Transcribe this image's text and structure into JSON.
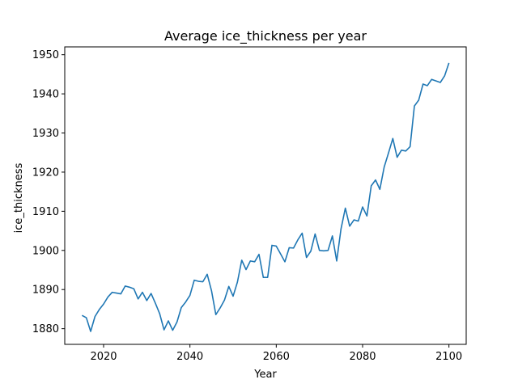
{
  "chart_data": {
    "type": "line",
    "title": "Average ice_thickness per year",
    "xlabel": "Year",
    "ylabel": "ice_thickness",
    "xlim": [
      2011,
      2104
    ],
    "ylim": [
      1876,
      1952
    ],
    "xticks": [
      2020,
      2040,
      2060,
      2080,
      2100
    ],
    "yticks": [
      1880,
      1890,
      1900,
      1910,
      1920,
      1930,
      1940,
      1950
    ],
    "grid": false,
    "line_color": "#1f77b4",
    "series": [
      {
        "x": [
          2015,
          2016,
          2017,
          2018,
          2019,
          2020,
          2021,
          2022,
          2023,
          2024,
          2025,
          2026,
          2027,
          2028,
          2029,
          2030,
          2031,
          2032,
          2033,
          2034,
          2035,
          2036,
          2037,
          2038,
          2039,
          2040,
          2041,
          2042,
          2043,
          2044,
          2045,
          2046,
          2047,
          2048,
          2049,
          2050,
          2051,
          2052,
          2053,
          2054,
          2055,
          2056,
          2057,
          2058,
          2059,
          2060,
          2061,
          2062,
          2063,
          2064,
          2065,
          2066,
          2067,
          2068,
          2069,
          2070,
          2071,
          2072,
          2073,
          2074,
          2075,
          2076,
          2077,
          2078,
          2079,
          2080,
          2081,
          2082,
          2083,
          2084,
          2085,
          2086,
          2087,
          2088,
          2089,
          2090,
          2091,
          2092,
          2093,
          2094,
          2095,
          2096,
          2097,
          2098,
          2099,
          2100
        ],
        "values": [
          1883.4,
          1882.8,
          1879.3,
          1883.1,
          1884.9,
          1886.3,
          1888.1,
          1889.3,
          1889.1,
          1888.9,
          1890.9,
          1890.6,
          1890.2,
          1887.6,
          1889.3,
          1887.2,
          1889.0,
          1886.5,
          1883.8,
          1879.7,
          1882.0,
          1879.6,
          1881.7,
          1885.4,
          1886.8,
          1888.5,
          1892.4,
          1892.1,
          1892.0,
          1893.9,
          1889.7,
          1883.6,
          1885.3,
          1887.3,
          1890.8,
          1888.3,
          1891.9,
          1897.5,
          1895.1,
          1897.3,
          1897.1,
          1899.0,
          1893.1,
          1893.1,
          1901.3,
          1901.1,
          1899.1,
          1897.1,
          1900.7,
          1900.6,
          1902.7,
          1904.4,
          1898.2,
          1899.8,
          1904.2,
          1900.0,
          1899.9,
          1900.0,
          1903.7,
          1897.3,
          1905.5,
          1910.8,
          1906.2,
          1907.8,
          1907.5,
          1911.1,
          1908.8,
          1916.5,
          1918.0,
          1915.6,
          1921.3,
          1924.9,
          1928.6,
          1923.8,
          1925.6,
          1925.4,
          1926.5,
          1936.9,
          1938.4,
          1942.5,
          1942.1,
          1943.7,
          1943.3,
          1942.9,
          1944.6,
          1947.9
        ]
      }
    ]
  }
}
